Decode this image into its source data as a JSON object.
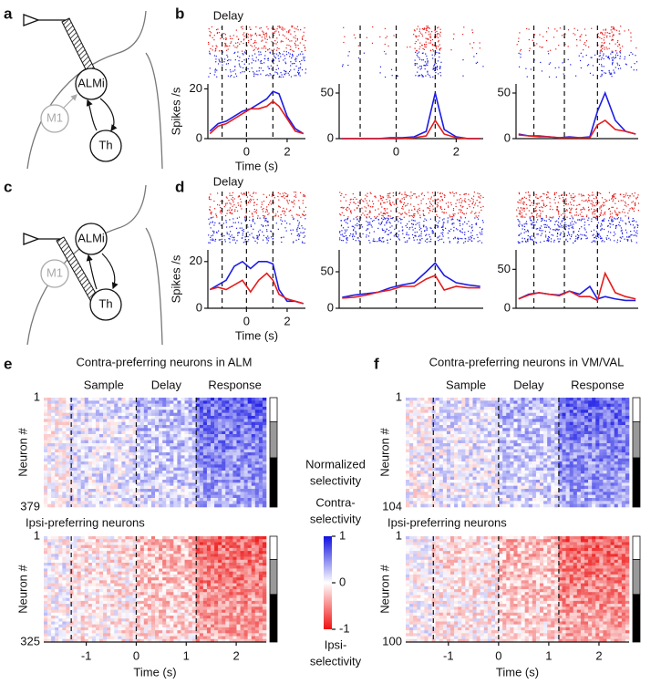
{
  "panel_labels": [
    "a",
    "b",
    "c",
    "d",
    "e",
    "f"
  ],
  "diagram": {
    "nodes": [
      "ALMi",
      "M1",
      "Th"
    ]
  },
  "chart_data": [
    {
      "type": "line",
      "title": "Delay",
      "ylabel": "Spikes /s",
      "xlabel": "Time (s)",
      "x": [
        -1.8,
        -1.4,
        -1.0,
        -0.6,
        -0.2,
        0.2,
        0.6,
        1.0,
        1.3,
        1.6,
        2.0,
        2.4,
        2.8
      ],
      "series": [
        {
          "color": "#1c1ce6",
          "values": [
            3,
            6,
            7,
            9,
            11,
            12,
            14,
            16,
            19,
            18,
            9,
            4,
            2
          ]
        },
        {
          "color": "#e61c1c",
          "values": [
            2,
            5,
            6,
            8,
            10,
            12,
            12,
            13,
            15,
            13,
            8,
            3,
            2
          ]
        }
      ],
      "xlim": [
        -1.9,
        2.9
      ],
      "ylim": [
        0,
        22
      ],
      "xticks": [
        0,
        2
      ],
      "yticks": [
        0,
        20
      ],
      "epochs": [
        -1.2,
        0,
        1.3
      ]
    },
    {
      "type": "line",
      "x": [
        -1.8,
        -1.4,
        -1.0,
        -0.6,
        -0.2,
        0.2,
        0.6,
        1.0,
        1.3,
        1.6,
        2.0,
        2.4,
        2.8
      ],
      "series": [
        {
          "color": "#1c1ce6",
          "values": [
            0,
            0,
            0,
            0,
            1,
            1,
            2,
            8,
            50,
            10,
            2,
            0,
            0
          ]
        },
        {
          "color": "#e61c1c",
          "values": [
            0,
            0,
            0,
            0,
            0,
            0,
            1,
            3,
            20,
            5,
            1,
            0,
            0
          ]
        }
      ],
      "xlim": [
        -1.9,
        2.9
      ],
      "ylim": [
        0,
        60
      ],
      "xticks": [
        0,
        2
      ],
      "yticks": [
        0,
        50
      ],
      "epochs": [
        -1.2,
        0,
        1.3
      ]
    },
    {
      "type": "line",
      "x": [
        -1.8,
        -1.4,
        -1.0,
        -0.6,
        -0.2,
        0.2,
        0.6,
        1.0,
        1.3,
        1.6,
        2.0,
        2.4,
        2.8
      ],
      "series": [
        {
          "color": "#1c1ce6",
          "values": [
            5,
            3,
            3,
            2,
            1,
            2,
            1,
            2,
            30,
            50,
            20,
            8,
            5
          ]
        },
        {
          "color": "#e61c1c",
          "values": [
            4,
            3,
            2,
            2,
            1,
            1,
            1,
            1,
            15,
            20,
            10,
            8,
            5
          ]
        }
      ],
      "xlim": [
        -1.9,
        2.9
      ],
      "ylim": [
        0,
        60
      ],
      "yticks": [
        0,
        50
      ],
      "epochs": [
        -1.2,
        0,
        1.3
      ]
    },
    {
      "type": "line",
      "title": "Delay",
      "ylabel": "Spikes /s",
      "xlabel": "Time (s)",
      "x": [
        -1.8,
        -1.4,
        -1.0,
        -0.6,
        -0.2,
        0.2,
        0.6,
        1.0,
        1.3,
        1.6,
        2.0,
        2.4,
        2.8
      ],
      "series": [
        {
          "color": "#1c1ce6",
          "values": [
            8,
            10,
            12,
            18,
            20,
            17,
            20,
            20,
            19,
            8,
            3,
            3,
            2
          ]
        },
        {
          "color": "#e61c1c",
          "values": [
            8,
            9,
            8,
            10,
            12,
            7,
            12,
            15,
            12,
            6,
            4,
            3,
            2
          ]
        }
      ],
      "xlim": [
        -1.9,
        2.9
      ],
      "ylim": [
        0,
        25
      ],
      "xticks": [
        0,
        2
      ],
      "yticks": [
        0,
        20
      ],
      "epochs": [
        -1.2,
        0,
        1.3
      ]
    },
    {
      "type": "line",
      "x": [
        -1.8,
        -1.4,
        -1.0,
        -0.6,
        -0.2,
        0.2,
        0.6,
        1.0,
        1.3,
        1.6,
        2.0,
        2.4,
        2.8
      ],
      "series": [
        {
          "color": "#1c1ce6",
          "values": [
            15,
            18,
            20,
            22,
            28,
            32,
            35,
            50,
            62,
            45,
            35,
            32,
            30
          ]
        },
        {
          "color": "#e61c1c",
          "values": [
            14,
            15,
            18,
            22,
            25,
            30,
            30,
            40,
            45,
            25,
            30,
            28,
            28
          ]
        }
      ],
      "xlim": [
        -1.9,
        2.9
      ],
      "ylim": [
        0,
        80
      ],
      "yticks": [
        0,
        50
      ],
      "epochs": [
        -1.2,
        0,
        1.3
      ]
    },
    {
      "type": "line",
      "x": [
        -1.8,
        -1.4,
        -1.0,
        -0.6,
        -0.2,
        0.2,
        0.6,
        1.0,
        1.3,
        1.6,
        2.0,
        2.4,
        2.8
      ],
      "series": [
        {
          "color": "#1c1ce6",
          "values": [
            12,
            18,
            20,
            18,
            17,
            22,
            18,
            28,
            12,
            15,
            12,
            10,
            10
          ]
        },
        {
          "color": "#e61c1c",
          "values": [
            12,
            17,
            20,
            18,
            16,
            22,
            15,
            15,
            10,
            45,
            20,
            15,
            12
          ]
        }
      ],
      "xlim": [
        -1.9,
        2.9
      ],
      "ylim": [
        0,
        75
      ],
      "yticks": [
        0,
        50
      ],
      "epochs": [
        -1.2,
        0,
        1.3
      ]
    }
  ],
  "heatmaps": [
    {
      "title": "Contra-preferring neurons in ALM",
      "epoch_labels": [
        "Sample",
        "Delay",
        "Response"
      ],
      "ylabel": "Neuron #",
      "ylim": [
        1,
        379
      ],
      "yticks": [
        1,
        379
      ],
      "preference": "contra"
    },
    {
      "title": "Ipsi-preferring neurons",
      "ylabel": "Neuron #",
      "ylim": [
        1,
        325
      ],
      "yticks": [
        1,
        325
      ],
      "preference": "ipsi"
    },
    {
      "title": "Contra-preferring neurons in VM/VAL",
      "epoch_labels": [
        "Sample",
        "Delay",
        "Response"
      ],
      "ylabel": "Neuron #",
      "ylim": [
        1,
        104
      ],
      "yticks": [
        1,
        104
      ],
      "preference": "contra"
    },
    {
      "title": "Ipsi-preferring neurons",
      "ylabel": "Neuron #",
      "ylim": [
        1,
        100
      ],
      "yticks": [
        1,
        100
      ],
      "preference": "ipsi"
    }
  ],
  "heatmap_time": {
    "xlim": [
      -1.85,
      2.6
    ],
    "xticks": [
      -1,
      0,
      1,
      2
    ],
    "xlabel": "Time (s)",
    "epochs": [
      -1.3,
      0,
      1.2
    ]
  },
  "colorbar": {
    "title": [
      "Normalized",
      "selectivity"
    ],
    "top_label": [
      "Contra-",
      "selectivity"
    ],
    "bottom_label": [
      "Ipsi-",
      "selectivity"
    ],
    "ticks": [
      1,
      0,
      -1
    ],
    "lim": [
      -1,
      1
    ]
  }
}
